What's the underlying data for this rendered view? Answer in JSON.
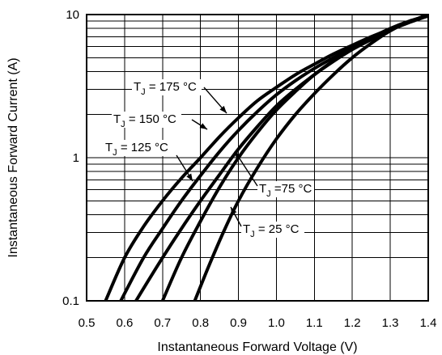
{
  "chart_data": {
    "type": "line",
    "title": "",
    "xlabel": "Instantaneous Forward Voltage (V)",
    "ylabel": "Instantaneous Forward Current (A)",
    "xlim": [
      0.5,
      1.4
    ],
    "ylim": [
      0.1,
      10
    ],
    "yscale": "log",
    "grid": true,
    "x_ticks": [
      "0.5",
      "0.6",
      "0.7",
      "0.8",
      "0.9",
      "1.0",
      "1.1",
      "1.2",
      "1.3",
      "1.4"
    ],
    "y_ticks": [
      "0.1",
      "1",
      "10"
    ],
    "series": [
      {
        "name": "175 °C",
        "label": {
          "prefix": "T",
          "sub": "J",
          "suffix": " = 175 °C"
        },
        "points": [
          [
            0.55,
            0.1
          ],
          [
            0.6,
            0.2
          ],
          [
            0.65,
            0.33
          ],
          [
            0.7,
            0.5
          ],
          [
            0.75,
            0.72
          ],
          [
            0.8,
            1.0
          ],
          [
            0.85,
            1.4
          ],
          [
            0.9,
            1.9
          ],
          [
            0.95,
            2.5
          ],
          [
            1.0,
            3.1
          ],
          [
            1.05,
            3.8
          ],
          [
            1.1,
            4.5
          ],
          [
            1.15,
            5.3
          ],
          [
            1.2,
            6.1
          ],
          [
            1.25,
            7.0
          ],
          [
            1.3,
            7.9
          ],
          [
            1.35,
            8.9
          ],
          [
            1.4,
            10.0
          ]
        ]
      },
      {
        "name": "150 °C",
        "label": {
          "prefix": "T",
          "sub": "J",
          "suffix": " = 150 °C"
        },
        "points": [
          [
            0.59,
            0.1
          ],
          [
            0.65,
            0.2
          ],
          [
            0.7,
            0.32
          ],
          [
            0.75,
            0.5
          ],
          [
            0.8,
            0.75
          ],
          [
            0.85,
            1.1
          ],
          [
            0.9,
            1.55
          ],
          [
            0.95,
            2.1
          ],
          [
            1.0,
            2.75
          ],
          [
            1.05,
            3.45
          ],
          [
            1.1,
            4.2
          ],
          [
            1.15,
            5.0
          ],
          [
            1.2,
            5.9
          ],
          [
            1.25,
            6.9
          ],
          [
            1.3,
            7.9
          ],
          [
            1.35,
            8.9
          ],
          [
            1.4,
            10.0
          ]
        ]
      },
      {
        "name": "125 °C",
        "label": {
          "prefix": "T",
          "sub": "J",
          "suffix": " = 125 °C"
        },
        "points": [
          [
            0.63,
            0.1
          ],
          [
            0.7,
            0.2
          ],
          [
            0.75,
            0.32
          ],
          [
            0.8,
            0.5
          ],
          [
            0.85,
            0.76
          ],
          [
            0.9,
            1.15
          ],
          [
            0.95,
            1.65
          ],
          [
            1.0,
            2.3
          ],
          [
            1.05,
            3.0
          ],
          [
            1.1,
            3.8
          ],
          [
            1.15,
            4.7
          ],
          [
            1.2,
            5.7
          ],
          [
            1.25,
            6.7
          ],
          [
            1.3,
            7.8
          ],
          [
            1.35,
            8.8
          ],
          [
            1.4,
            9.8
          ]
        ]
      },
      {
        "name": "75 °C",
        "label": {
          "prefix": "T",
          "sub": "J",
          "suffix": " =75 °C"
        },
        "points": [
          [
            0.7,
            0.1
          ],
          [
            0.75,
            0.2
          ],
          [
            0.8,
            0.36
          ],
          [
            0.85,
            0.62
          ],
          [
            0.9,
            1.0
          ],
          [
            0.95,
            1.5
          ],
          [
            1.0,
            2.15
          ],
          [
            1.05,
            2.9
          ],
          [
            1.1,
            3.8
          ],
          [
            1.15,
            4.75
          ],
          [
            1.2,
            5.8
          ],
          [
            1.25,
            6.9
          ],
          [
            1.3,
            8.0
          ],
          [
            1.35,
            9.0
          ],
          [
            1.4,
            9.8
          ]
        ]
      },
      {
        "name": "25 °C",
        "label": {
          "prefix": "T",
          "sub": "J",
          "suffix": " = 25 °C"
        },
        "points": [
          [
            0.785,
            0.1
          ],
          [
            0.82,
            0.17
          ],
          [
            0.86,
            0.3
          ],
          [
            0.9,
            0.5
          ],
          [
            0.95,
            0.85
          ],
          [
            1.0,
            1.35
          ],
          [
            1.05,
            2.0
          ],
          [
            1.1,
            2.8
          ],
          [
            1.15,
            3.8
          ],
          [
            1.2,
            5.0
          ],
          [
            1.25,
            6.3
          ],
          [
            1.3,
            7.7
          ],
          [
            1.35,
            8.9
          ],
          [
            1.4,
            9.8
          ]
        ]
      }
    ]
  }
}
